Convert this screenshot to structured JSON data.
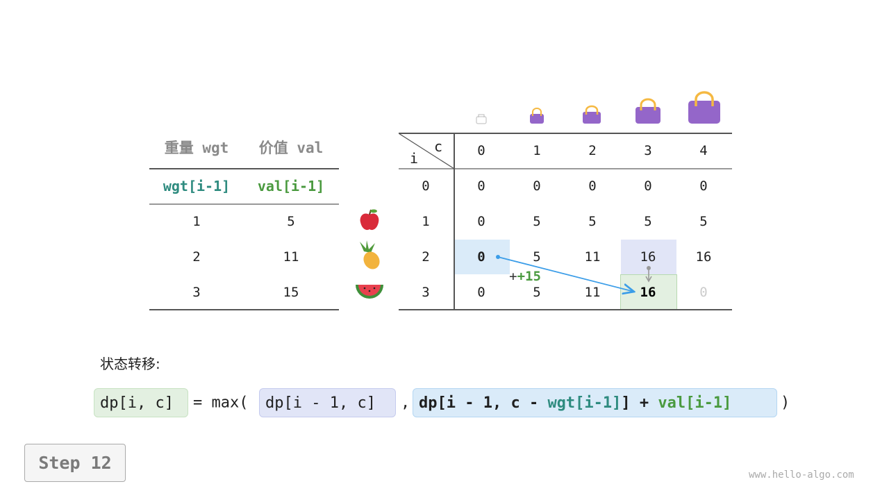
{
  "items_table": {
    "headers": [
      "重量 wgt",
      "价值 val"
    ],
    "subheaders": [
      "wgt[i-1]",
      "val[i-1]"
    ],
    "rows": [
      [
        "1",
        "5"
      ],
      [
        "2",
        "11"
      ],
      [
        "3",
        "15"
      ]
    ]
  },
  "item_icons": [
    "apple-icon",
    "pineapple-icon",
    "watermelon-icon"
  ],
  "dp_table": {
    "corner_col": "c",
    "corner_row": "i",
    "col_headers": [
      "0",
      "1",
      "2",
      "3",
      "4"
    ],
    "row_headers": [
      "0",
      "1",
      "2",
      "3"
    ],
    "rows": [
      [
        "0",
        "0",
        "0",
        "0",
        "0"
      ],
      [
        "0",
        "5",
        "5",
        "5",
        "5"
      ],
      [
        "0",
        "5",
        "11",
        "16",
        "16"
      ],
      [
        "0",
        "5",
        "11",
        "16",
        "0"
      ]
    ]
  },
  "annotation": "+15",
  "formula": {
    "label": "状态转移:",
    "lhs": "dp[i, c]",
    "eq": "= max(",
    "arg1": "dp[i - 1, c]",
    "comma": ",",
    "arg2_a": "dp[i - 1, c - ",
    "arg2_wgt": "wgt[i-1]",
    "arg2_b": "] + ",
    "arg2_val": "val[i-1]",
    "close": ")"
  },
  "step_label": "Step 12",
  "watermark": "www.hello-algo.com",
  "colors": {
    "teal": "#2e8b7f",
    "green": "#4a9a3f",
    "blue_arrow": "#3b9de8",
    "bag": "#9466c9",
    "cell_blue": "#daebf9",
    "cell_lavender": "#e1e5f7",
    "cell_green": "#e3f0e1"
  }
}
